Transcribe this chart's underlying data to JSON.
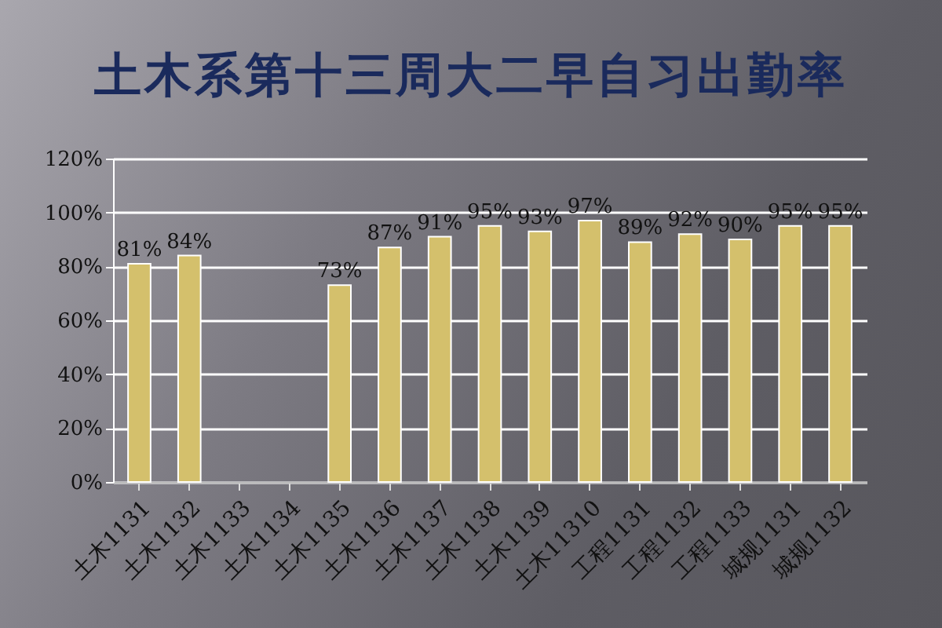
{
  "chart_data": {
    "type": "bar",
    "title": "土木系第十三周大二早自习出勤率",
    "categories": [
      "土木1131",
      "土木1132",
      "土木1133",
      "土木1134",
      "土木1135",
      "土木1136",
      "土木1137",
      "土木1138",
      "土木1139",
      "土木11310",
      "工程1131",
      "工程1132",
      "工程1133",
      "城规1131",
      "城规1132"
    ],
    "values": [
      81,
      84,
      null,
      null,
      73,
      87,
      91,
      95,
      93,
      97,
      89,
      92,
      90,
      95,
      95
    ],
    "value_labels": [
      "81%",
      "84%",
      null,
      null,
      "73%",
      "87%",
      "91%",
      "95%",
      "93%",
      "97%",
      "89%",
      "92%",
      "90%",
      "95%",
      "95%"
    ],
    "color": "#d4c06c",
    "ylim": [
      0,
      120
    ],
    "yticks": [
      {
        "value": 0,
        "label": "0%"
      },
      {
        "value": 20,
        "label": "20%"
      },
      {
        "value": 40,
        "label": "40%"
      },
      {
        "value": 60,
        "label": "60%"
      },
      {
        "value": 80,
        "label": "80%"
      },
      {
        "value": 100,
        "label": "100%"
      },
      {
        "value": 120,
        "label": "120%"
      }
    ],
    "grid": "y"
  }
}
